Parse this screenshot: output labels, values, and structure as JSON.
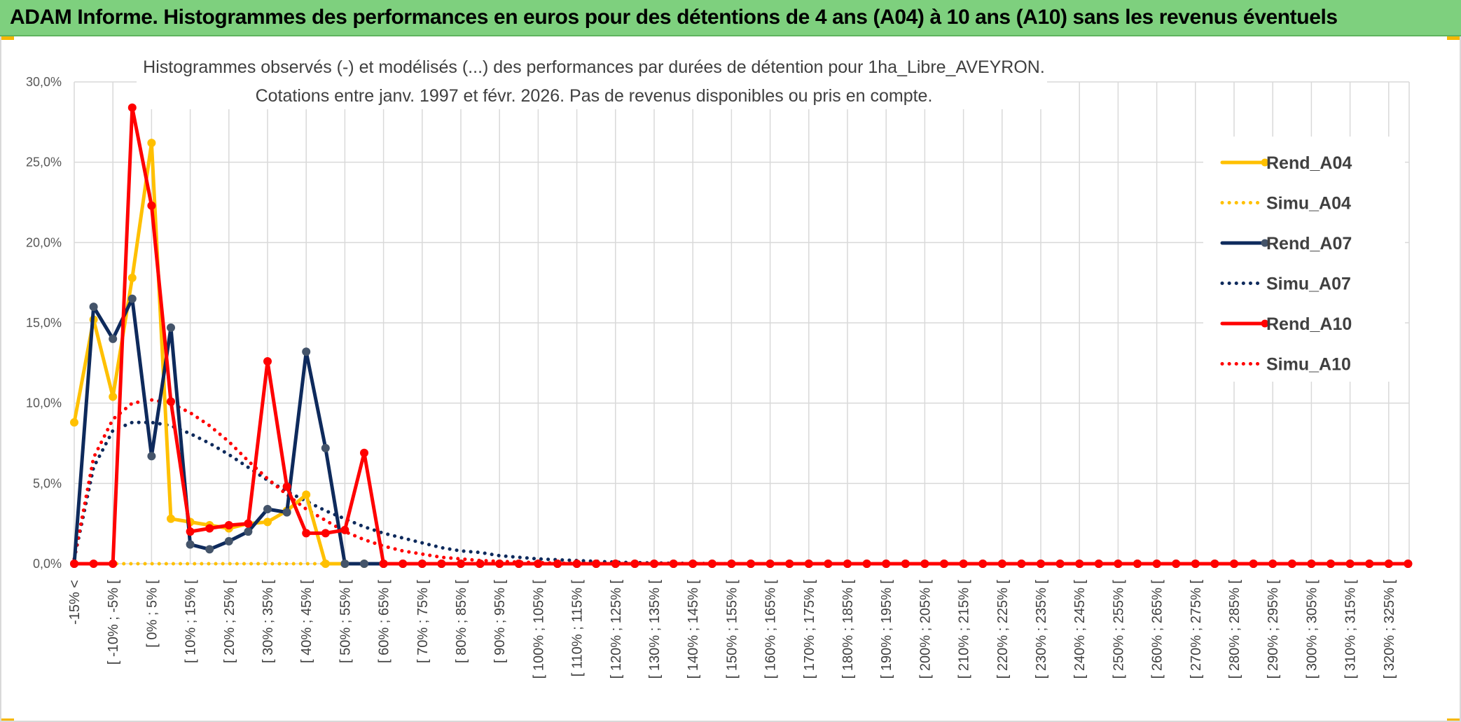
{
  "banner": {
    "title": "ADAM Informe. Histogrammes des performances en euros pour des détentions de 4 ans (A04) à 10 ans (A10) sans les revenus éventuels",
    "background": "#7ed07e"
  },
  "chart_data": {
    "type": "line",
    "title": "Histogrammes observés (-) et modélisés (...) des performances par durées de détention pour 1ha_Libre_AVEYRON.",
    "subtitle": "Cotations entre janv. 1997 et févr. 2026. Pas de revenus disponibles ou pris en compte.",
    "ylim": [
      0,
      0.3
    ],
    "yticks": [
      "0,0%",
      "5,0%",
      "10,0%",
      "15,0%",
      "20,0%",
      "25,0%",
      "30,0%"
    ],
    "grid": true,
    "legend_position": "right",
    "x_labels": [
      "-15% <",
      "[ -10% ; -5% [",
      "[ 0% ; 5% [",
      "[ 10% ; 15% [",
      "[ 20% ; 25% [",
      "[ 30% ; 35% [",
      "[ 40% ; 45% [",
      "[ 50% ; 55% [",
      "[ 60% ; 65% [",
      "[ 70% ; 75% [",
      "[ 80% ; 85% [",
      "[ 90% ; 95% [",
      "[ 100% ; 105% [",
      "[ 110% ; 115% [",
      "[ 120% ; 125% [",
      "[ 130% ; 135% [",
      "[ 140% ; 145% [",
      "[ 150% ; 155% [",
      "[ 160% ; 165% [",
      "[ 170% ; 175% [",
      "[ 180% ; 185% [",
      "[ 190% ; 195% [",
      "[ 200% ; 205% [",
      "[ 210% ; 215% [",
      "[ 220% ; 225% [",
      "[ 230% ; 235% [",
      "[ 240% ; 245% [",
      "[ 250% ; 255% [",
      "[ 260% ; 265% [",
      "[ 270% ; 275% [",
      "[ 280% ; 285% [",
      "[ 290% ; 295% [",
      "[ 300% ; 305% [",
      "[ 310% ; 315% [",
      "[ 320% ; 325% ["
    ],
    "series": [
      {
        "name": "Rend_A04",
        "color": "#ffc000",
        "style": "solid",
        "markers": true,
        "values": [
          0.088,
          0.152,
          0.104,
          0.178,
          0.262,
          0.028,
          0.026,
          0.024,
          0.022,
          0.025,
          0.026,
          0.033,
          0.043,
          0.0,
          0.0,
          0.0,
          0.0
        ]
      },
      {
        "name": "Simu_A04",
        "color": "#ffc000",
        "style": "dotted",
        "markers": false,
        "values": [
          0.0,
          0.0,
          0.0,
          0.0,
          0.0,
          0.0,
          0.0,
          0.0,
          0.0,
          0.0,
          0.0,
          0.0,
          0.0,
          0.0
        ]
      },
      {
        "name": "Rend_A07",
        "color": "#0e2a5c",
        "style": "solid",
        "markers": true,
        "values": [
          0.0,
          0.16,
          0.14,
          0.165,
          0.067,
          0.147,
          0.012,
          0.009,
          0.014,
          0.02,
          0.034,
          0.032,
          0.132,
          0.072,
          0.0,
          0.0,
          0.0
        ]
      },
      {
        "name": "Simu_A07",
        "color": "#0e2a5c",
        "style": "dotted",
        "markers": false,
        "values": [
          0.003,
          0.06,
          0.083,
          0.088,
          0.088,
          0.086,
          0.081,
          0.075,
          0.068,
          0.06,
          0.052,
          0.045,
          0.039,
          0.033,
          0.028,
          0.023,
          0.019,
          0.016,
          0.013,
          0.01,
          0.008,
          0.007,
          0.005,
          0.004,
          0.003,
          0.0025,
          0.002,
          0.0015,
          0.001,
          0.0007,
          0.0005,
          0.0003,
          0.0002,
          0.0001,
          0.0
        ]
      },
      {
        "name": "Rend_A10",
        "color": "#ff0000",
        "style": "solid",
        "markers": true,
        "values": [
          0.0,
          0.0,
          0.0,
          0.284,
          0.223,
          0.101,
          0.02,
          0.022,
          0.024,
          0.025,
          0.126,
          0.048,
          0.019,
          0.019,
          0.021,
          0.069,
          0.0,
          0.0,
          0.0,
          0.0,
          0.0,
          0.0,
          0.0,
          0.0,
          0.0,
          0.0,
          0.0,
          0.0,
          0.0,
          0.0,
          0.0,
          0.0,
          0.0,
          0.0,
          0.0,
          0.0,
          0.0,
          0.0,
          0.0,
          0.0,
          0.0,
          0.0,
          0.0,
          0.0,
          0.0,
          0.0,
          0.0,
          0.0,
          0.0,
          0.0,
          0.0,
          0.0,
          0.0,
          0.0,
          0.0,
          0.0,
          0.0,
          0.0,
          0.0,
          0.0,
          0.0,
          0.0,
          0.0,
          0.0,
          0.0,
          0.0,
          0.0,
          0.0,
          0.0,
          0.0
        ]
      },
      {
        "name": "Simu_A10",
        "color": "#ff0000",
        "style": "dotted",
        "markers": false,
        "values": [
          0.003,
          0.066,
          0.09,
          0.1,
          0.102,
          0.1,
          0.094,
          0.086,
          0.076,
          0.064,
          0.053,
          0.043,
          0.034,
          0.027,
          0.02,
          0.015,
          0.011,
          0.008,
          0.006,
          0.004,
          0.003,
          0.002,
          0.0015,
          0.001,
          0.0007,
          0.0004,
          0.0002,
          0.0001,
          0.0
        ]
      }
    ]
  }
}
